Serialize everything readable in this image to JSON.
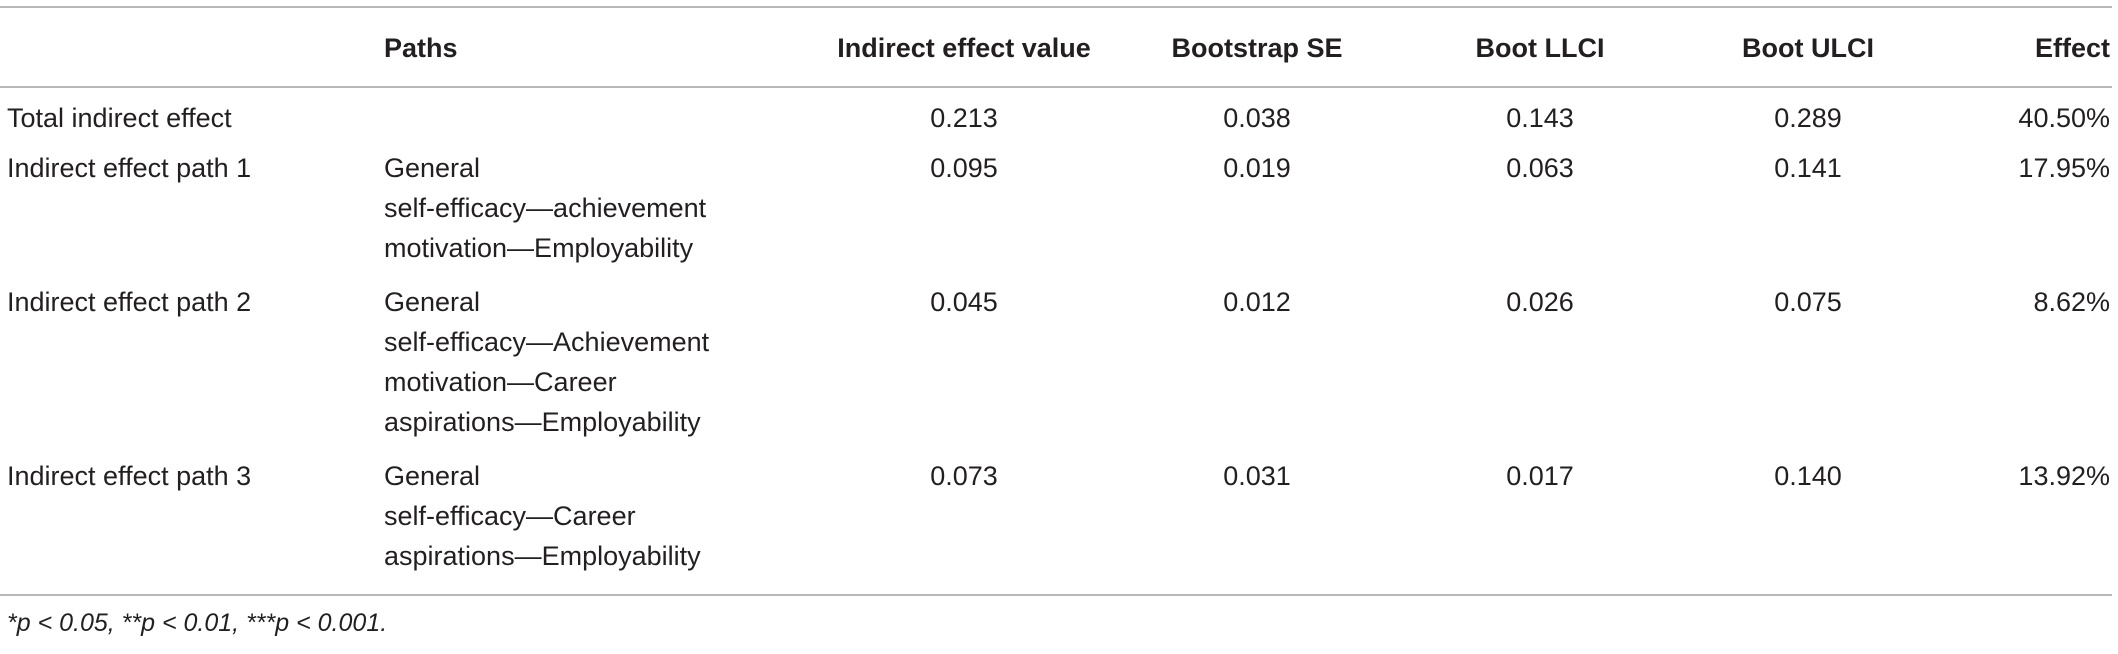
{
  "table": {
    "headers": [
      "",
      "Paths",
      "Indirect effect value",
      "Bootstrap SE",
      "Boot LLCI",
      "Boot ULCI",
      "Effect"
    ],
    "rows": [
      {
        "label": "Total indirect effect",
        "path_lines": [],
        "indirect_value": "0.213",
        "bootstrap_se": "0.038",
        "boot_llci": "0.143",
        "boot_ulci": "0.289",
        "effect": "40.50%"
      },
      {
        "label": "Indirect effect path 1",
        "path_lines": [
          "General",
          "self-efficacy—achievement",
          "motivation—Employability"
        ],
        "indirect_value": "0.095",
        "bootstrap_se": "0.019",
        "boot_llci": "0.063",
        "boot_ulci": "0.141",
        "effect": "17.95%"
      },
      {
        "label": "Indirect effect path 2",
        "path_lines": [
          "General",
          "self-efficacy—Achievement",
          "motivation—Career",
          "aspirations—Employability"
        ],
        "indirect_value": "0.045",
        "bootstrap_se": "0.012",
        "boot_llci": "0.026",
        "boot_ulci": "0.075",
        "effect": "8.62%"
      },
      {
        "label": "Indirect effect path 3",
        "path_lines": [
          "General",
          "self-efficacy—Career",
          "aspirations—Employability"
        ],
        "indirect_value": "0.073",
        "bootstrap_se": "0.031",
        "boot_llci": "0.017",
        "boot_ulci": "0.140",
        "effect": "13.92%"
      }
    ]
  },
  "footnote": "*p < 0.05, **p < 0.01, ***p < 0.001."
}
